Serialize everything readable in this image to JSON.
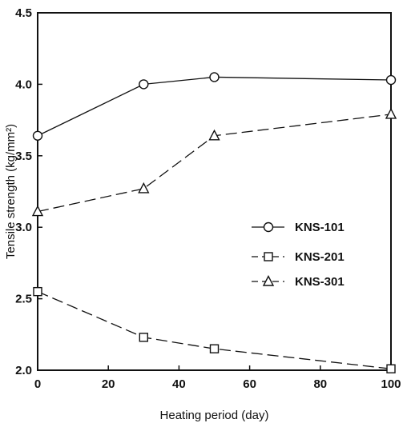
{
  "chart_data": {
    "type": "line",
    "xlabel": "Heating period (day)",
    "ylabel": "Tensile strength (kg/mm²)",
    "xlim": [
      0,
      100
    ],
    "ylim": [
      2.0,
      4.5
    ],
    "xticks": [
      "0",
      "20",
      "40",
      "60",
      "80",
      "100"
    ],
    "yticks": [
      "2.0",
      "2.5",
      "3.0",
      "3.5",
      "4.0",
      "4.5"
    ],
    "grid": false,
    "legend_position": "center-right",
    "series": [
      {
        "name": "KNS-101",
        "marker": "circle",
        "line": "solid",
        "x": [
          0,
          30,
          50,
          100
        ],
        "y": [
          3.64,
          4.0,
          4.05,
          4.03
        ]
      },
      {
        "name": "KNS-201",
        "marker": "square",
        "line": "dashed",
        "x": [
          0,
          30,
          50,
          100
        ],
        "y": [
          2.55,
          2.23,
          2.15,
          2.01
        ]
      },
      {
        "name": "KNS-301",
        "marker": "triangle",
        "line": "dashed",
        "x": [
          0,
          30,
          50,
          100
        ],
        "y": [
          3.11,
          3.27,
          3.64,
          3.79
        ]
      }
    ]
  }
}
